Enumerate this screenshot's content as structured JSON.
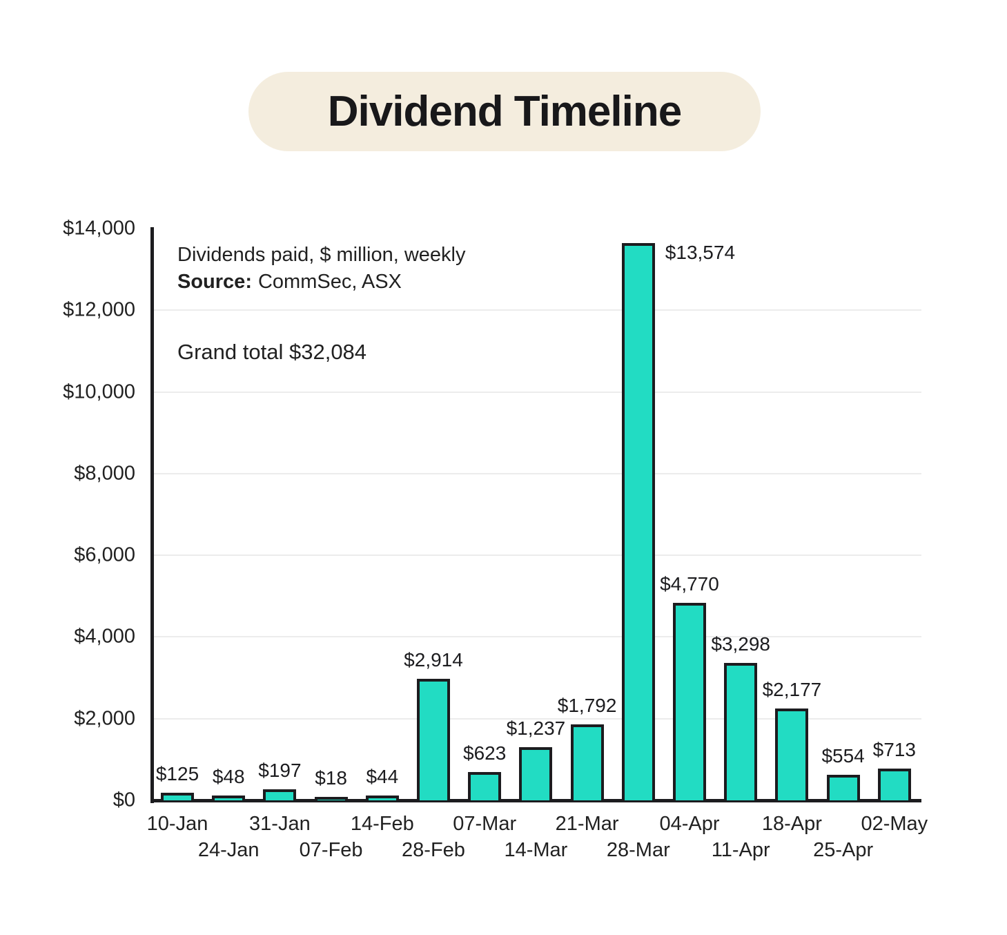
{
  "title": "Dividend Timeline",
  "annotations": {
    "subtitle": "Dividends paid, $ million, weekly",
    "source_label": "Source:",
    "source_value": "CommSec, ASX",
    "grand_total": "Grand total $32,084"
  },
  "colors": {
    "bar_fill": "#22DCC3",
    "bar_border": "#1c1c1f",
    "axis": "#1c1c1f",
    "grid": "#ececec",
    "pill_bg": "#F4EDDE",
    "text": "#212121"
  },
  "chart_data": {
    "type": "bar",
    "title": "Dividend Timeline",
    "subtitle": "Dividends paid, $ million, weekly",
    "source": "CommSec, ASX",
    "grand_total": 32084,
    "categories": [
      "10-Jan",
      "24-Jan",
      "31-Jan",
      "07-Feb",
      "14-Feb",
      "28-Feb",
      "07-Mar",
      "14-Mar",
      "21-Mar",
      "28-Mar",
      "04-Apr",
      "11-Apr",
      "18-Apr",
      "25-Apr",
      "02-May"
    ],
    "values": [
      125,
      48,
      197,
      18,
      44,
      2914,
      623,
      1237,
      1792,
      13574,
      4770,
      3298,
      2177,
      554,
      713
    ],
    "value_labels": [
      "$125",
      "$48",
      "$197",
      "$18",
      "$44",
      "$2,914",
      "$623",
      "$1,237",
      "$1,792",
      "$13,574",
      "$4,770",
      "$3,298",
      "$2,177",
      "$554",
      "$713"
    ],
    "y_tick_labels": [
      "$0",
      "$2,000",
      "$4,000",
      "$6,000",
      "$8,000",
      "$10,000",
      "$12,000",
      "$14,000"
    ],
    "y_tick_values": [
      0,
      2000,
      4000,
      6000,
      8000,
      10000,
      12000,
      14000
    ],
    "ylim": [
      0,
      14000
    ],
    "xlabel": "",
    "ylabel": "",
    "grid": true,
    "legend": false,
    "x_label_rows": "staggered-two-rows"
  }
}
